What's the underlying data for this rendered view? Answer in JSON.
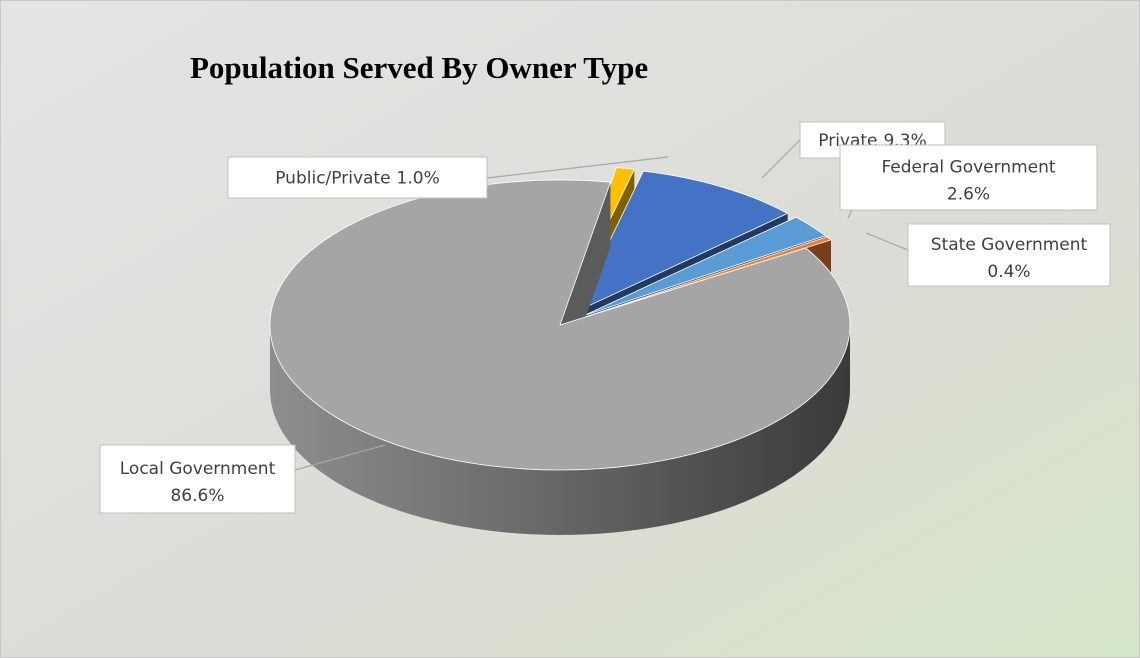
{
  "chart_data": {
    "type": "pie3d",
    "title": "Population Served By Owner Type",
    "categories": [
      "Public/Private",
      "Private",
      "Federal Government",
      "State Government",
      "Local Government"
    ],
    "values": [
      1.0,
      9.3,
      2.6,
      0.4,
      86.6
    ],
    "value_labels": [
      "1.0%",
      "9.3%",
      "2.6%",
      "0.4%",
      "86.6%"
    ],
    "colors": [
      "#ffc000",
      "#4472c4",
      "#5b9bd5",
      "#ed7d31",
      "#a5a5a5"
    ]
  }
}
